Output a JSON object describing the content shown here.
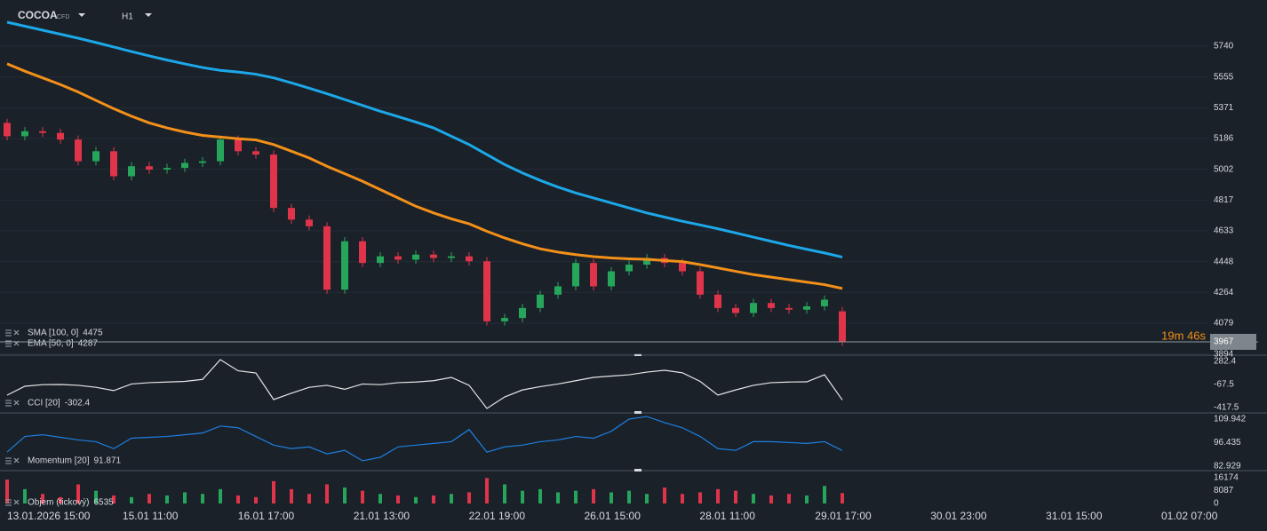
{
  "header": {
    "symbol": "COCOA",
    "instrument": "CFD",
    "timeframe": "H1"
  },
  "chart_data": [
    {
      "type": "candlestick",
      "countdown": "19m 46s",
      "time_labels": [
        "13.01.2026 15:00",
        "15.01 11:00",
        "16.01 17:00",
        "21.01 13:00",
        "22.01 19:00",
        "26.01 15:00",
        "28.01 11:00",
        "29.01 17:00",
        "30.01 23:00",
        "31.01 15:00",
        "01.02 07:00"
      ],
      "open": [
        5280,
        5200,
        5230,
        5220,
        5180,
        5050,
        5110,
        4960,
        5020,
        5000,
        5010,
        5040,
        5050,
        5180,
        5110,
        5090,
        4770,
        4700,
        4660,
        4280,
        4570,
        4440,
        4480,
        4460,
        4490,
        4470,
        4480,
        4450,
        4090,
        4110,
        4170,
        4250,
        4300,
        4440,
        4300,
        4390,
        4430,
        4470,
        4440,
        4390,
        4250,
        4170,
        4140,
        4200,
        4170,
        4160,
        4180,
        4150
      ],
      "high": [
        5305,
        5255,
        5255,
        5245,
        5205,
        5135,
        5135,
        5045,
        5045,
        5035,
        5065,
        5075,
        5205,
        5205,
        5135,
        5115,
        4795,
        4725,
        4685,
        4595,
        4595,
        4505,
        4505,
        4515,
        4515,
        4505,
        4505,
        4475,
        4135,
        4195,
        4275,
        4325,
        4465,
        4465,
        4415,
        4455,
        4495,
        4495,
        4465,
        4415,
        4275,
        4195,
        4225,
        4225,
        4195,
        4205,
        4245,
        4175
      ],
      "low": [
        5175,
        5175,
        5195,
        5155,
        5025,
        5025,
        4935,
        4935,
        4975,
        4975,
        4985,
        5015,
        5025,
        5085,
        5065,
        4745,
        4675,
        4635,
        4255,
        4255,
        4415,
        4415,
        4435,
        4435,
        4445,
        4445,
        4425,
        4065,
        4065,
        4085,
        4145,
        4225,
        4275,
        4275,
        4275,
        4365,
        4405,
        4415,
        4365,
        4225,
        4145,
        4115,
        4115,
        4145,
        4135,
        4135,
        4155,
        3942
      ],
      "close": [
        5200,
        5230,
        5220,
        5180,
        5050,
        5110,
        4960,
        5020,
        5000,
        5010,
        5040,
        5050,
        5180,
        5110,
        5090,
        4770,
        4700,
        4660,
        4280,
        4570,
        4440,
        4480,
        4460,
        4490,
        4470,
        4480,
        4450,
        4090,
        4110,
        4170,
        4250,
        4300,
        4440,
        4300,
        4390,
        4430,
        4470,
        4440,
        4390,
        4250,
        4170,
        4140,
        4200,
        4170,
        4160,
        4180,
        4220,
        3967
      ],
      "up_color": "#26a65b",
      "down_color": "#e0344a",
      "series": [
        {
          "name": "SMA [100, 0]",
          "color": "#1ca8e8",
          "values": [
            5884,
            5860,
            5836,
            5812,
            5788,
            5762,
            5735,
            5708,
            5682,
            5657,
            5634,
            5612,
            5595,
            5585,
            5572,
            5550,
            5520,
            5488,
            5455,
            5420,
            5385,
            5350,
            5318,
            5285,
            5250,
            5200,
            5150,
            5090,
            5030,
            4980,
            4935,
            4895,
            4860,
            4830,
            4800,
            4770,
            4740,
            4715,
            4690,
            4668,
            4645,
            4620,
            4595,
            4570,
            4545,
            4522,
            4500,
            4475
          ]
        },
        {
          "name": "EMA [50, 0]",
          "color": "#f39019",
          "values": [
            5634,
            5590,
            5550,
            5510,
            5465,
            5415,
            5365,
            5320,
            5280,
            5250,
            5225,
            5205,
            5195,
            5185,
            5178,
            5150,
            5110,
            5070,
            5020,
            4975,
            4930,
            4880,
            4830,
            4780,
            4740,
            4705,
            4675,
            4630,
            4590,
            4555,
            4525,
            4505,
            4490,
            4478,
            4470,
            4465,
            4462,
            4455,
            4448,
            4430,
            4410,
            4390,
            4370,
            4355,
            4340,
            4325,
            4310,
            4287
          ]
        }
      ],
      "ylim": [
        3887,
        6017
      ],
      "yticks": [
        5740,
        5555,
        5371,
        5186,
        5002,
        4817,
        4633,
        4448,
        4264,
        4079,
        3894
      ],
      "grid": true
    },
    {
      "type": "line",
      "name": "CCI [20]",
      "color": "#e6e6e6",
      "values": [
        -229,
        -94,
        -70,
        -67,
        -80,
        -110,
        -160,
        -60,
        -40,
        -30,
        -20,
        10,
        309,
        140,
        107,
        -296,
        -200,
        -110,
        -80,
        -140,
        -60,
        -70,
        -40,
        -30,
        -10,
        40,
        -80,
        -430,
        -256,
        -150,
        -100,
        -60,
        -10,
        40,
        60,
        80,
        120,
        148,
        110,
        -20,
        -229,
        -150,
        -80,
        -40,
        -30,
        -27,
        80,
        -302.4
      ],
      "ylim": [
        -498,
        376.6
      ],
      "yticks": [
        282.4,
        -67.5,
        -417.5
      ]
    },
    {
      "type": "line",
      "name": "Momentum [20]",
      "color": "#1e7fe0",
      "values": [
        91,
        100,
        101,
        99.5,
        98,
        97,
        93,
        99,
        99.5,
        100,
        101,
        102,
        106,
        105,
        100,
        95,
        93,
        94,
        90,
        92,
        86,
        88,
        94,
        95,
        96,
        97,
        104,
        91,
        94,
        95,
        97,
        98,
        100,
        99,
        103,
        110,
        111.5,
        108,
        105,
        100,
        93,
        92,
        97,
        97,
        96.5,
        96,
        97,
        91.871
      ],
      "ylim": [
        80.332,
        113.578
      ],
      "yticks": [
        109.942,
        96.435,
        82.929
      ]
    },
    {
      "type": "bar",
      "name": "Objem (tickový)",
      "values": [
        15000,
        9000,
        6000,
        4000,
        12000,
        8000,
        5000,
        4000,
        6000,
        5000,
        7000,
        6000,
        9000,
        5000,
        4000,
        14000,
        9000,
        6000,
        12000,
        10000,
        8000,
        6000,
        5000,
        4000,
        5000,
        6000,
        7000,
        16000,
        12000,
        8000,
        9000,
        7000,
        8000,
        9000,
        7000,
        8000,
        6000,
        10000,
        6000,
        7000,
        9000,
        8000,
        6000,
        5000,
        6000,
        5000,
        11000,
        6535
      ],
      "ylim": [
        -4462,
        20636
      ],
      "yticks": [
        16174,
        8087,
        0
      ]
    }
  ]
}
